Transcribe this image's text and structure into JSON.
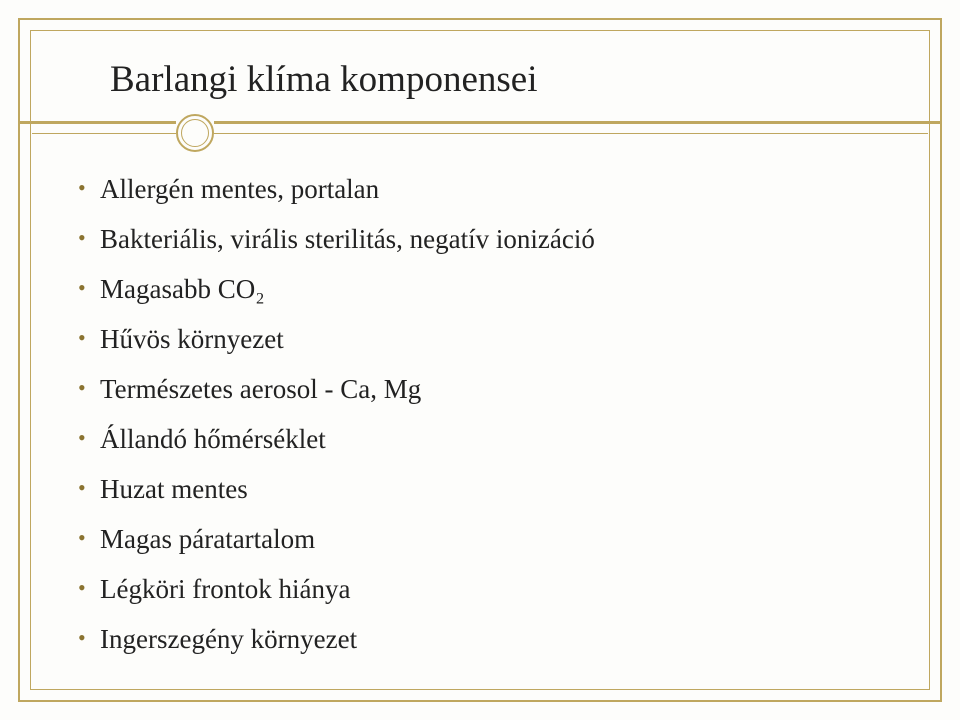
{
  "title": "Barlangi klíma komponensei",
  "bullets": [
    "Allergén mentes, portalan",
    "Bakteriális, virális sterilitás, negatív ionizáció",
    "Magasabb CO₂",
    "Hűvös környezet",
    "Természetes aerosol - Ca, Mg",
    "Állandó hőmérséklet",
    "Huzat mentes",
    "Magas páratartalom",
    "Légköri frontok hiánya",
    "Ingerszegény környezet"
  ],
  "style": {
    "slide_width": 960,
    "slide_height": 720,
    "background_color": "#fdfdfb",
    "frame_color": "#bfa75f",
    "outer_frame_width": 2.5,
    "inner_frame_width": 1,
    "title_font_size": 37,
    "title_color": "#222222",
    "body_font_size": 27,
    "body_color": "#222222",
    "bullet_color": "#8a7330",
    "font_family": "Georgia, Times New Roman, serif",
    "circle_outer_diameter": 38,
    "circle_inner_diameter": 28
  }
}
